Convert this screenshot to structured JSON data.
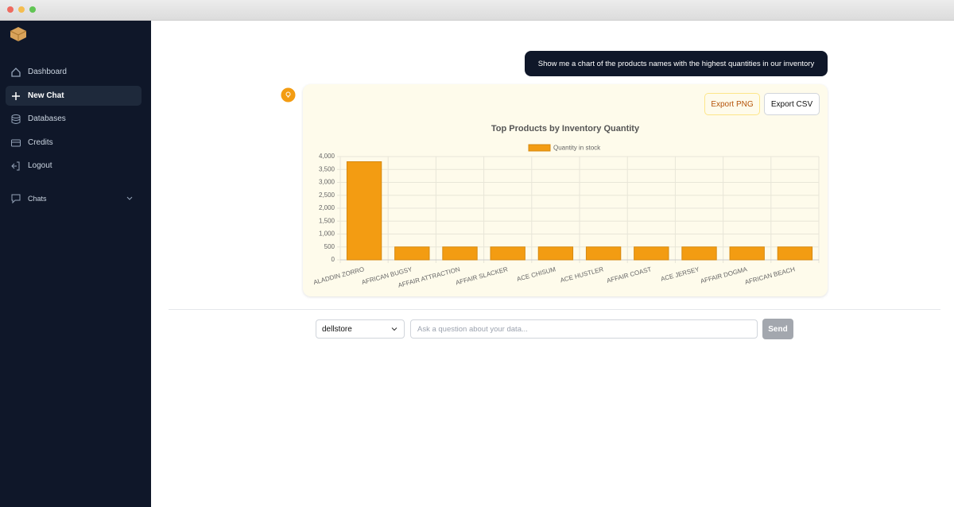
{
  "sidebar": {
    "nav": [
      "Dashboard",
      "New Chat",
      "Databases",
      "Credits",
      "Logout"
    ],
    "chats_label": "Chats"
  },
  "chat": {
    "user_message": "Show me a chart of the products names with the highest quantities in our inventory",
    "buttons": [
      "Export PNG",
      "Export CSV"
    ]
  },
  "chart_data": {
    "type": "bar",
    "title": "Top Products by Inventory Quantity",
    "categories": [
      "ALADDIN ZORRO",
      "AFRICAN BUGSY",
      "AFFAIR ATTRACTION",
      "AFFAIR SLACKER",
      "ACE CHISUM",
      "ACE HUSTLER",
      "AFFAIR COAST",
      "ACE JERSEY",
      "AFFAIR DOGMA",
      "AFRICAN BEACH"
    ],
    "series": [
      {
        "name": "Quantity in stock",
        "color": "#f39c12",
        "values": [
          3800,
          500,
          500,
          500,
          500,
          500,
          500,
          500,
          500,
          500
        ]
      }
    ],
    "ylim": [
      0,
      4000
    ],
    "yticks": [
      0,
      500,
      {
        "value": 1000,
        "label": "1,000"
      },
      {
        "value": 1500,
        "label": "1,500"
      },
      {
        "value": 2000,
        "label": "2,000"
      },
      {
        "value": 2500,
        "label": "2,500"
      },
      {
        "value": 3000,
        "label": "3,000"
      },
      {
        "value": 3500,
        "label": "3,500"
      },
      {
        "value": 4000,
        "label": "4,000"
      }
    ],
    "grid": true,
    "legend": "top"
  },
  "composer": {
    "database": "dellstore",
    "placeholder": "Ask a question about your data...",
    "send": "Send"
  }
}
